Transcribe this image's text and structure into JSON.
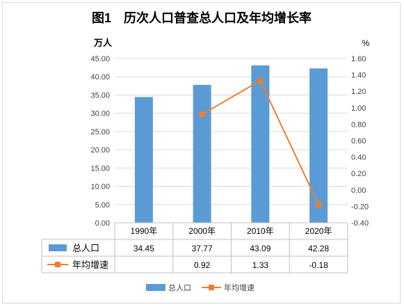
{
  "chart_data": {
    "type": "bar",
    "title": "图1　历次人口普查总人口及年均增长率",
    "y_left_unit": "万人",
    "y_right_unit": "%",
    "y_left_ticks": [
      "0.00",
      "5.00",
      "10.00",
      "15.00",
      "20.00",
      "25.00",
      "30.00",
      "35.00",
      "40.00",
      "45.00"
    ],
    "y_right_ticks": [
      "-0.40",
      "-0.20",
      "0.00",
      "0.20",
      "0.40",
      "0.60",
      "0.80",
      "1.00",
      "1.20",
      "1.40",
      "1.60"
    ],
    "ylim_left": [
      0,
      45
    ],
    "ylim_right": [
      -0.4,
      1.6
    ],
    "grid": true,
    "legend_placement": "bottom",
    "categories": [
      "1990年",
      "2000年",
      "2010年",
      "2020年"
    ],
    "series": [
      {
        "name": "总人口",
        "kind": "bar",
        "axis": "left",
        "color": "#5b9bd5",
        "values": [
          34.45,
          37.77,
          43.09,
          42.28
        ],
        "labels": [
          "34.45",
          "37.77",
          "43.09",
          "42.28"
        ]
      },
      {
        "name": "年均增速",
        "kind": "line",
        "axis": "right",
        "color": "#ed7d31",
        "values": [
          null,
          0.92,
          1.33,
          -0.18
        ],
        "labels": [
          "",
          "0.92",
          "1.33",
          "-0.18"
        ]
      }
    ]
  }
}
